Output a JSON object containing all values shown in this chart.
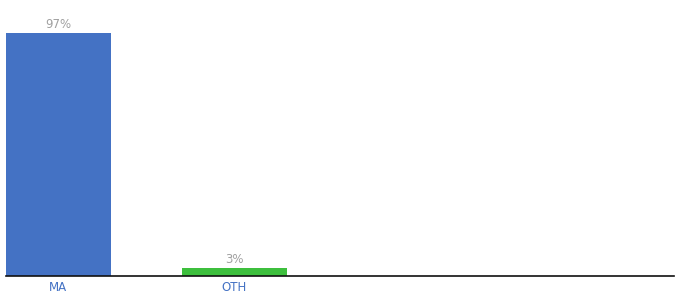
{
  "categories": [
    "MA",
    "OTH"
  ],
  "values": [
    97,
    3
  ],
  "bar_colors": [
    "#4472c4",
    "#3dbf3d"
  ],
  "label_texts": [
    "97%",
    "3%"
  ],
  "label_color": "#a0a0a0",
  "ylim": [
    0,
    108
  ],
  "background_color": "#ffffff",
  "tick_label_color": "#4472c4",
  "axis_line_color": "#111111",
  "bar_width": 0.6,
  "label_fontsize": 8.5,
  "tick_fontsize": 8.5,
  "xlim": [
    -0.3,
    3.5
  ]
}
